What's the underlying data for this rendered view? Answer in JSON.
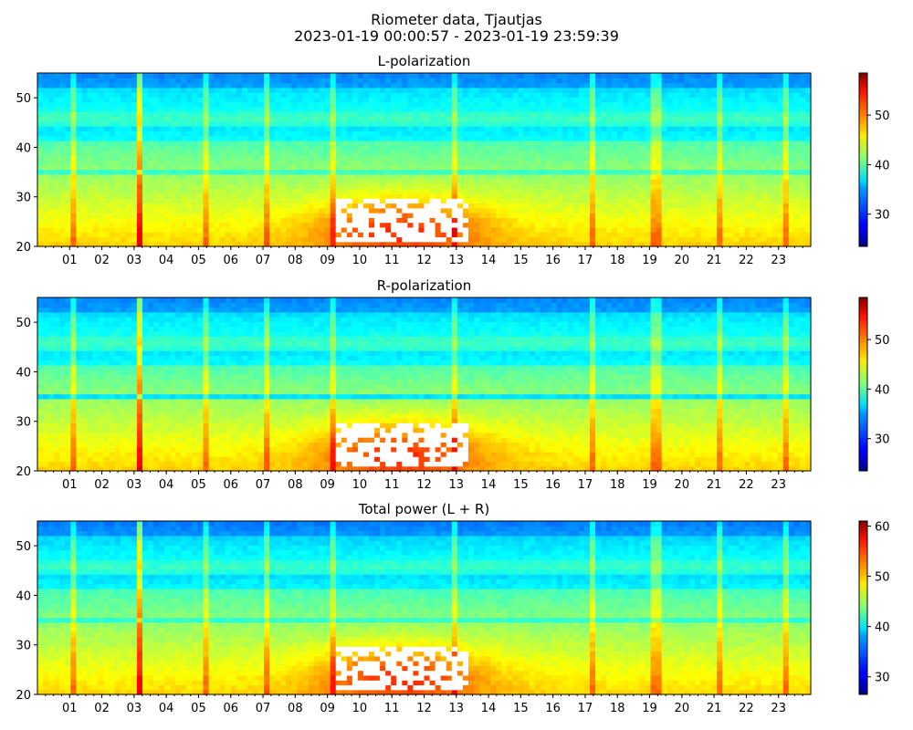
{
  "figure": {
    "title_line1": "Riometer data, Tjautjas",
    "title_line2": "2023-01-19 00:00:57 - 2023-01-19 23:59:39"
  },
  "chart_data": [
    {
      "type": "heatmap",
      "title": "L-polarization",
      "x_ticks": [
        "01",
        "02",
        "03",
        "04",
        "05",
        "06",
        "07",
        "08",
        "09",
        "10",
        "11",
        "12",
        "13",
        "14",
        "15",
        "16",
        "17",
        "18",
        "19",
        "20",
        "21",
        "22",
        "23"
      ],
      "x_range_hours": [
        0,
        24
      ],
      "y_ticks": [
        20,
        30,
        40,
        50
      ],
      "y_range": [
        20,
        55
      ],
      "colorbar": {
        "range": [
          23.5,
          58.5
        ],
        "ticks": [
          30,
          40,
          50
        ],
        "colormap": "jet"
      },
      "saturated_region_color": "#ffffff"
    },
    {
      "type": "heatmap",
      "title": "R-polarization",
      "x_ticks": [
        "01",
        "02",
        "03",
        "04",
        "05",
        "06",
        "07",
        "08",
        "09",
        "10",
        "11",
        "12",
        "13",
        "14",
        "15",
        "16",
        "17",
        "18",
        "19",
        "20",
        "21",
        "22",
        "23"
      ],
      "x_range_hours": [
        0,
        24
      ],
      "y_ticks": [
        20,
        30,
        40,
        50
      ],
      "y_range": [
        20,
        55
      ],
      "colorbar": {
        "range": [
          23.5,
          58.5
        ],
        "ticks": [
          30,
          40,
          50
        ],
        "colormap": "jet"
      },
      "saturated_region_color": "#ffffff"
    },
    {
      "type": "heatmap",
      "title": "Total power (L + R)",
      "x_ticks": [
        "01",
        "02",
        "03",
        "04",
        "05",
        "06",
        "07",
        "08",
        "09",
        "10",
        "11",
        "12",
        "13",
        "14",
        "15",
        "16",
        "17",
        "18",
        "19",
        "20",
        "21",
        "22",
        "23"
      ],
      "x_range_hours": [
        0,
        24
      ],
      "y_ticks": [
        20,
        30,
        40,
        50
      ],
      "y_range": [
        20,
        55
      ],
      "colorbar": {
        "range": [
          26.5,
          61
        ],
        "ticks": [
          30,
          40,
          50,
          60
        ],
        "colormap": "jet"
      },
      "saturated_region_color": "#ffffff"
    }
  ]
}
